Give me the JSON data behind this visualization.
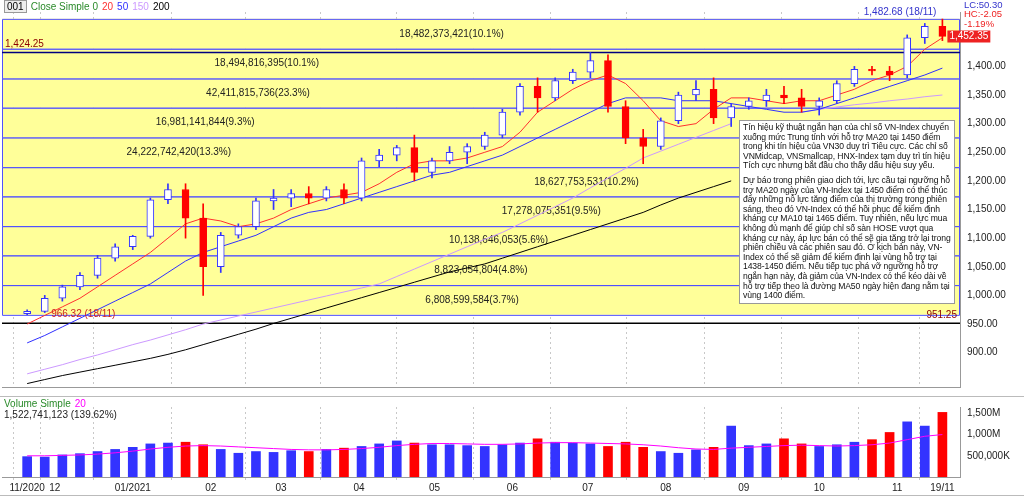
{
  "chart_data": [
    {
      "type": "candlestick",
      "x": [
        "2020-11-20",
        "2020-11-27",
        "2020-12-04",
        "2020-12-11",
        "2020-12-18",
        "2020-12-25",
        "2021-01-01",
        "2021-01-08",
        "2021-01-15",
        "2021-01-22",
        "2021-01-29",
        "2021-02-05",
        "2021-02-12",
        "2021-02-19",
        "2021-02-26",
        "2021-03-05",
        "2021-03-12",
        "2021-03-19",
        "2021-03-26",
        "2021-04-02",
        "2021-04-09",
        "2021-04-16",
        "2021-04-23",
        "2021-04-30",
        "2021-05-07",
        "2021-05-14",
        "2021-05-21",
        "2021-05-28",
        "2021-06-04",
        "2021-06-11",
        "2021-06-18",
        "2021-06-25",
        "2021-07-02",
        "2021-07-09",
        "2021-07-16",
        "2021-07-23",
        "2021-07-30",
        "2021-08-06",
        "2021-08-13",
        "2021-08-20",
        "2021-08-27",
        "2021-09-03",
        "2021-09-10",
        "2021-09-17",
        "2021-09-24",
        "2021-10-01",
        "2021-10-08",
        "2021-10-15",
        "2021-10-22",
        "2021-10-29",
        "2021-11-05",
        "2021-11-12",
        "2021-11-19"
      ],
      "series": [
        {
          "ohlc": [
            [
              968,
              975,
              966.32,
              972
            ],
            [
              972,
              1000,
              970,
              995
            ],
            [
              995,
              1018,
              990,
              1015
            ],
            [
              1015,
              1040,
              1010,
              1035
            ],
            [
              1035,
              1070,
              1030,
              1065
            ],
            [
              1065,
              1090,
              1060,
              1085
            ],
            [
              1085,
              1105,
              1080,
              1103
            ],
            [
              1103,
              1170,
              1100,
              1167
            ],
            [
              1167,
              1195,
              1160,
              1185
            ],
            [
              1185,
              1195,
              1100,
              1135
            ],
            [
              1135,
              1160,
              1000,
              1050
            ],
            [
              1050,
              1110,
              1040,
              1105
            ],
            [
              1105,
              1125,
              1100,
              1120
            ],
            [
              1120,
              1170,
              1115,
              1165
            ],
            [
              1165,
              1185,
              1150,
              1170
            ],
            [
              1170,
              1185,
              1155,
              1178
            ],
            [
              1178,
              1190,
              1160,
              1170
            ],
            [
              1170,
              1190,
              1165,
              1185
            ],
            [
              1185,
              1195,
              1160,
              1170
            ],
            [
              1170,
              1240,
              1165,
              1235
            ],
            [
              1235,
              1255,
              1225,
              1245
            ],
            [
              1245,
              1262,
              1235,
              1258
            ],
            [
              1258,
              1280,
              1200,
              1215
            ],
            [
              1215,
              1240,
              1205,
              1235
            ],
            [
              1235,
              1260,
              1230,
              1250
            ],
            [
              1250,
              1265,
              1230,
              1260
            ],
            [
              1260,
              1285,
              1255,
              1280
            ],
            [
              1280,
              1325,
              1275,
              1320
            ],
            [
              1320,
              1370,
              1315,
              1365
            ],
            [
              1365,
              1380,
              1320,
              1345
            ],
            [
              1345,
              1380,
              1340,
              1375
            ],
            [
              1375,
              1395,
              1370,
              1390
            ],
            [
              1390,
              1424.25,
              1380,
              1410
            ],
            [
              1410,
              1420,
              1320,
              1330
            ],
            [
              1330,
              1340,
              1265,
              1275
            ],
            [
              1275,
              1290,
              1230,
              1260
            ],
            [
              1260,
              1310,
              1255,
              1305
            ],
            [
              1305,
              1355,
              1300,
              1350
            ],
            [
              1350,
              1375,
              1340,
              1360
            ],
            [
              1360,
              1380,
              1300,
              1310
            ],
            [
              1310,
              1335,
              1295,
              1330
            ],
            [
              1330,
              1345,
              1325,
              1340
            ],
            [
              1340,
              1360,
              1330,
              1350
            ],
            [
              1350,
              1365,
              1335,
              1345
            ],
            [
              1345,
              1360,
              1320,
              1330
            ],
            [
              1330,
              1345,
              1315,
              1340
            ],
            [
              1340,
              1375,
              1335,
              1370
            ],
            [
              1370,
              1400,
              1365,
              1395
            ],
            [
              1395,
              1400,
              1385,
              1392
            ],
            [
              1392,
              1400,
              1375,
              1385
            ],
            [
              1385,
              1455,
              1380,
              1450
            ],
            [
              1450,
              1475,
              1440,
              1470
            ],
            [
              1470,
              1482.68,
              1445,
              1452.35
            ]
          ],
          "colors": [
            "#3333ff",
            "#3333ff",
            "#3333ff",
            "#3333ff",
            "#3333ff",
            "#3333ff",
            "#3333ff",
            "#3333ff",
            "#3333ff",
            "#ff0000",
            "#ff0000",
            "#3333ff",
            "#3333ff",
            "#3333ff",
            "#3333ff",
            "#3333ff",
            "#ff0000",
            "#3333ff",
            "#ff0000",
            "#3333ff",
            "#3333ff",
            "#3333ff",
            "#ff0000",
            "#3333ff",
            "#3333ff",
            "#3333ff",
            "#3333ff",
            "#3333ff",
            "#3333ff",
            "#ff0000",
            "#3333ff",
            "#3333ff",
            "#3333ff",
            "#ff0000",
            "#ff0000",
            "#ff0000",
            "#3333ff",
            "#3333ff",
            "#3333ff",
            "#ff0000",
            "#3333ff",
            "#3333ff",
            "#3333ff",
            "#ff0000",
            "#ff0000",
            "#3333ff",
            "#3333ff",
            "#3333ff",
            "#ff0000",
            "#ff0000",
            "#3333ff",
            "#3333ff",
            "#ff0000"
          ]
        },
        {
          "name": "20",
          "type": "line",
          "color": "#ff3030",
          "values": [
            950,
            965,
            980,
            995,
            1015,
            1035,
            1055,
            1075,
            1100,
            1125,
            1135,
            1130,
            1120,
            1125,
            1135,
            1150,
            1160,
            1170,
            1175,
            1180,
            1195,
            1215,
            1230,
            1235,
            1235,
            1240,
            1250,
            1260,
            1285,
            1320,
            1340,
            1360,
            1375,
            1385,
            1370,
            1340,
            1305,
            1295,
            1300,
            1325,
            1345,
            1345,
            1340,
            1335,
            1340,
            1340,
            1350,
            1360,
            1375,
            1385,
            1400,
            1430,
            1450
          ]
        },
        {
          "name": "50",
          "type": "line",
          "color": "#3030ff",
          "values": [
            917,
            930,
            945,
            960,
            975,
            990,
            1005,
            1020,
            1040,
            1060,
            1075,
            1085,
            1095,
            1105,
            1120,
            1135,
            1145,
            1150,
            1160,
            1170,
            1180,
            1190,
            1200,
            1210,
            1215,
            1225,
            1235,
            1245,
            1260,
            1275,
            1290,
            1305,
            1320,
            1335,
            1345,
            1345,
            1345,
            1340,
            1340,
            1340,
            1335,
            1330,
            1325,
            1320,
            1320,
            1325,
            1335,
            1345,
            1355,
            1365,
            1375,
            1385,
            1397
          ]
        },
        {
          "name": "150",
          "type": "line",
          "color": "#cc99ff",
          "values": [
            863,
            871,
            879,
            888,
            896,
            905,
            914,
            922,
            931,
            940,
            950,
            957,
            964,
            971,
            978,
            985,
            992,
            999,
            1006,
            1013,
            1020,
            1033,
            1046,
            1059,
            1072,
            1085,
            1098,
            1110,
            1125,
            1140,
            1155,
            1170,
            1188,
            1205,
            1222,
            1240,
            1252,
            1264,
            1276,
            1288,
            1300,
            null,
            null,
            null,
            1320,
            1325,
            1329,
            1333,
            1336,
            1340,
            1343,
            1347,
            1350
          ]
        },
        {
          "name": "200",
          "type": "line",
          "color": "#000000",
          "values": [
            846,
            853,
            860,
            866,
            872,
            878,
            884,
            890,
            897,
            905,
            914,
            923,
            932,
            941,
            951,
            960,
            969,
            978,
            987,
            996,
            1005,
            1014,
            1023,
            1032,
            1041,
            1048,
            1055,
            1065,
            1075,
            1085,
            1095,
            1105,
            1115,
            1125,
            1135,
            1145,
            1158,
            1170,
            1180,
            1190,
            1200,
            null,
            null,
            null,
            null,
            null,
            null,
            null,
            null,
            null,
            null,
            null,
            null
          ]
        }
      ],
      "xlim": [
        "2020-11-10",
        "2021-11-26"
      ],
      "xticks": [
        {
          "value": "2020-11-20",
          "label": null
        },
        {
          "value": "2020-12-01",
          "label": null
        },
        {
          "value": "2021-01-01",
          "label": null
        },
        {
          "value": "2021-02-01",
          "label": null
        },
        {
          "value": "2021-03-01",
          "label": null
        },
        {
          "value": "2021-04-01",
          "label": null
        },
        {
          "value": "2021-05-01",
          "label": null
        },
        {
          "value": "2021-06-01",
          "label": null
        },
        {
          "value": "2021-07-01",
          "label": null
        },
        {
          "value": "2021-08-01",
          "label": null
        },
        {
          "value": "2021-09-01",
          "label": null
        },
        {
          "value": "2021-10-01",
          "label": null
        },
        {
          "value": "2021-11-01",
          "label": null
        },
        {
          "value": "2021-11-19",
          "label": null
        }
      ],
      "ylim": [
        840,
        1495
      ],
      "yticks": [
        {
          "value": 900,
          "label": "900.00"
        },
        {
          "value": 950,
          "label": "950.00"
        },
        {
          "value": 1000,
          "label": "1,000.00"
        },
        {
          "value": 1050,
          "label": "1,050.00"
        },
        {
          "value": 1100,
          "label": "1,100.00"
        },
        {
          "value": 1150,
          "label": "1,150.00"
        },
        {
          "value": 1200,
          "label": "1,200.00"
        },
        {
          "value": 1250,
          "label": "1,250.00"
        },
        {
          "value": 1300,
          "label": "1,300.00"
        },
        {
          "value": 1350,
          "label": "1,350.00"
        },
        {
          "value": 1400,
          "label": "1,400.00"
        }
      ],
      "grid": "x",
      "tick_labels": "y",
      "legend": "top left",
      "legend_title": "Close Simple 0",
      "bands": [
        {
          "axis": "y",
          "from": 966,
          "to": 1018,
          "label": "6,808,599,584(3.7%)",
          "color": "#ffff99"
        },
        {
          "axis": "y",
          "from": 1018,
          "to": 1070,
          "label": "8,823,054,804(4.8%)",
          "color": "#ffff99"
        },
        {
          "axis": "y",
          "from": 1070,
          "to": 1121,
          "label": "10,138,646,053(5.6%)",
          "color": "#ffff99"
        },
        {
          "axis": "y",
          "from": 1121,
          "to": 1173,
          "label": "17,278,075,351(9.5%)",
          "color": "#ffff99"
        },
        {
          "axis": "y",
          "from": 1173,
          "to": 1224,
          "label": "18,627,753,531(10.2%)",
          "color": "#ffff99"
        },
        {
          "axis": "y",
          "from": 1224,
          "to": 1276,
          "label": "24,222,742,420(13.3%)",
          "color": "#ffff99"
        },
        {
          "axis": "y",
          "from": 1276,
          "to": 1328,
          "label": "16,981,141,844(9.3%)",
          "color": "#ffff99"
        },
        {
          "axis": "y",
          "from": 1328,
          "to": 1379,
          "label": "42,411,815,736(23.3%)",
          "color": "#ffff99"
        },
        {
          "axis": "y",
          "from": 1379,
          "to": 1431,
          "label": "18,494,816,395(10.1%)",
          "color": "#ffff99"
        },
        {
          "axis": "y",
          "from": 1431,
          "to": 1483,
          "label": "18,482,373,421(10.1%)",
          "color": "#ffff99"
        }
      ],
      "ref_lines": [
        {
          "axis": "y",
          "value": 1424.25,
          "label": "1,424.25",
          "color": "#000080"
        },
        {
          "axis": "y",
          "value": 951.25,
          "label": "951.25",
          "color": "#000000"
        }
      ],
      "annotations": [
        "001",
        "LC:50.30",
        "HC:-2.05",
        "-1.19%",
        {
          "text": "1,452.35",
          "x": "2021-11-19",
          "y": 1452.35
        },
        {
          "text": "1,482.68 (18/11)",
          "x": "2021-11-19",
          "y": 1482.68
        },
        {
          "text": "966.32 (18/11)",
          "x": "2020-11-20",
          "y": 966.32
        },
        "Tín hiệu kỹ thuật ngắn hạn của chỉ số VN-Index chuyển xuống mức Trung tính với hỗ trợ MA20 tại 1450 điểm trong khi tín hiệu của VN30 duy trì Tiêu cực. Các chỉ số VNMidcap, VNSmallcap, HNX-Index tạm duy trì tín hiệu Tích cực nhưng bắt đầu cho thấy dấu hiệu suy yếu.",
        "Dự báo trong phiên giao dịch tới, lực cầu tại ngưỡng hỗ trợ MA20 ngày của VN-Index tại 1450 điểm có thể thúc đẩy những nỗ lực tăng điểm của thị trường trong phiên sáng, theo đó VN-Index có thể hồi phục để kiểm định kháng cự MA10 tại 1465 điểm. Tuy nhiên, nếu lực mua không đủ mạnh để giúp chỉ số sàn HOSE vượt qua kháng cự này, áp lực bán có thể sẽ gia tăng trở lại trong phiên chiều và các phiên sau đó. Ở kịch bản này, VN-Index có thể sẽ giảm để kiểm định lại vùng hỗ trợ tại 1438-1450 điểm. Nếu tiếp tục phá vỡ ngưỡng hỗ trợ ngắn hạn này, đà giảm của VN-Index có thể kéo dài về hỗ trợ tiếp theo là đường MA50 ngày hiện đang nằm tại vùng 1400 điểm."
      ]
    },
    {
      "type": "bar",
      "x": [
        "2020-11-20",
        "2020-11-27",
        "2020-12-04",
        "2020-12-11",
        "2020-12-18",
        "2020-12-25",
        "2021-01-01",
        "2021-01-08",
        "2021-01-15",
        "2021-01-22",
        "2021-01-29",
        "2021-02-05",
        "2021-02-12",
        "2021-02-19",
        "2021-02-26",
        "2021-03-05",
        "2021-03-12",
        "2021-03-19",
        "2021-03-26",
        "2021-04-02",
        "2021-04-09",
        "2021-04-16",
        "2021-04-23",
        "2021-04-30",
        "2021-05-07",
        "2021-05-14",
        "2021-05-21",
        "2021-05-28",
        "2021-06-04",
        "2021-06-11",
        "2021-06-18",
        "2021-06-25",
        "2021-07-02",
        "2021-07-09",
        "2021-07-16",
        "2021-07-23",
        "2021-07-30",
        "2021-08-06",
        "2021-08-13",
        "2021-08-20",
        "2021-08-27",
        "2021-09-03",
        "2021-09-10",
        "2021-09-17",
        "2021-09-24",
        "2021-10-01",
        "2021-10-08",
        "2021-10-15",
        "2021-10-22",
        "2021-10-29",
        "2021-11-05",
        "2021-11-12",
        "2021-11-19"
      ],
      "series": [
        {
          "values": [
            480000000,
            470000000,
            520000000,
            550000000,
            600000000,
            650000000,
            700000000,
            780000000,
            800000000,
            820000000,
            760000000,
            650000000,
            560000000,
            600000000,
            580000000,
            620000000,
            600000000,
            650000000,
            680000000,
            720000000,
            780000000,
            850000000,
            800000000,
            760000000,
            760000000,
            740000000,
            720000000,
            760000000,
            800000000,
            900000000,
            820000000,
            800000000,
            780000000,
            720000000,
            820000000,
            700000000,
            600000000,
            560000000,
            640000000,
            700000000,
            1200000000,
            740000000,
            780000000,
            900000000,
            780000000,
            720000000,
            760000000,
            820000000,
            880000000,
            1050000000,
            1300000000,
            1200000000,
            1522741123
          ],
          "colors": [
            "#3333ff",
            "#3333ff",
            "#3333ff",
            "#3333ff",
            "#3333ff",
            "#3333ff",
            "#3333ff",
            "#3333ff",
            "#3333ff",
            "#ff0000",
            "#ff0000",
            "#3333ff",
            "#3333ff",
            "#3333ff",
            "#3333ff",
            "#3333ff",
            "#ff0000",
            "#3333ff",
            "#ff0000",
            "#3333ff",
            "#3333ff",
            "#3333ff",
            "#ff0000",
            "#3333ff",
            "#3333ff",
            "#3333ff",
            "#3333ff",
            "#3333ff",
            "#3333ff",
            "#ff0000",
            "#3333ff",
            "#3333ff",
            "#3333ff",
            "#ff0000",
            "#ff0000",
            "#ff0000",
            "#3333ff",
            "#3333ff",
            "#3333ff",
            "#ff0000",
            "#3333ff",
            "#3333ff",
            "#3333ff",
            "#ff0000",
            "#ff0000",
            "#3333ff",
            "#3333ff",
            "#3333ff",
            "#ff0000",
            "#ff0000",
            "#3333ff",
            "#3333ff",
            "#ff0000"
          ]
        },
        {
          "name": "20",
          "type": "line",
          "color": "#ff00ff",
          "values": [
            500000000,
            500000000,
            510000000,
            520000000,
            540000000,
            570000000,
            610000000,
            660000000,
            700000000,
            730000000,
            740000000,
            730000000,
            710000000,
            690000000,
            670000000,
            650000000,
            640000000,
            640000000,
            650000000,
            670000000,
            700000000,
            740000000,
            770000000,
            790000000,
            790000000,
            780000000,
            770000000,
            770000000,
            780000000,
            800000000,
            810000000,
            810000000,
            800000000,
            790000000,
            780000000,
            760000000,
            730000000,
            690000000,
            660000000,
            650000000,
            680000000,
            700000000,
            720000000,
            740000000,
            750000000,
            740000000,
            730000000,
            740000000,
            760000000,
            800000000,
            880000000,
            960000000,
            1000000000
          ]
        }
      ],
      "xlim": [
        "2020-11-10",
        "2021-11-26"
      ],
      "xticks": [
        {
          "value": "2020-11-20",
          "label": "11/2020"
        },
        {
          "value": "2020-12-01",
          "label": "12"
        },
        {
          "value": "2021-01-01",
          "label": "01/2021"
        },
        {
          "value": "2021-02-01",
          "label": "02"
        },
        {
          "value": "2021-03-01",
          "label": "03"
        },
        {
          "value": "2021-04-01",
          "label": "04"
        },
        {
          "value": "2021-05-01",
          "label": "05"
        },
        {
          "value": "2021-06-01",
          "label": "06"
        },
        {
          "value": "2021-07-01",
          "label": "07"
        },
        {
          "value": "2021-08-01",
          "label": "08"
        },
        {
          "value": "2021-09-01",
          "label": "09"
        },
        {
          "value": "2021-10-01",
          "label": "10"
        },
        {
          "value": "2021-11-01",
          "label": "11"
        },
        {
          "value": "2021-11-19",
          "label": "19/11"
        }
      ],
      "ylim": [
        0,
        1650000000
      ],
      "yticks": [
        {
          "value": 500000000,
          "label": "500,000K"
        },
        {
          "value": 1000000000,
          "label": "1,000M"
        },
        {
          "value": 1500000000,
          "label": "1,500M"
        }
      ],
      "grid": "x",
      "legend": "top left",
      "legend_title": "Volume Simple",
      "annotations": [
        "1,522,741,123 (139.62%)"
      ]
    }
  ]
}
